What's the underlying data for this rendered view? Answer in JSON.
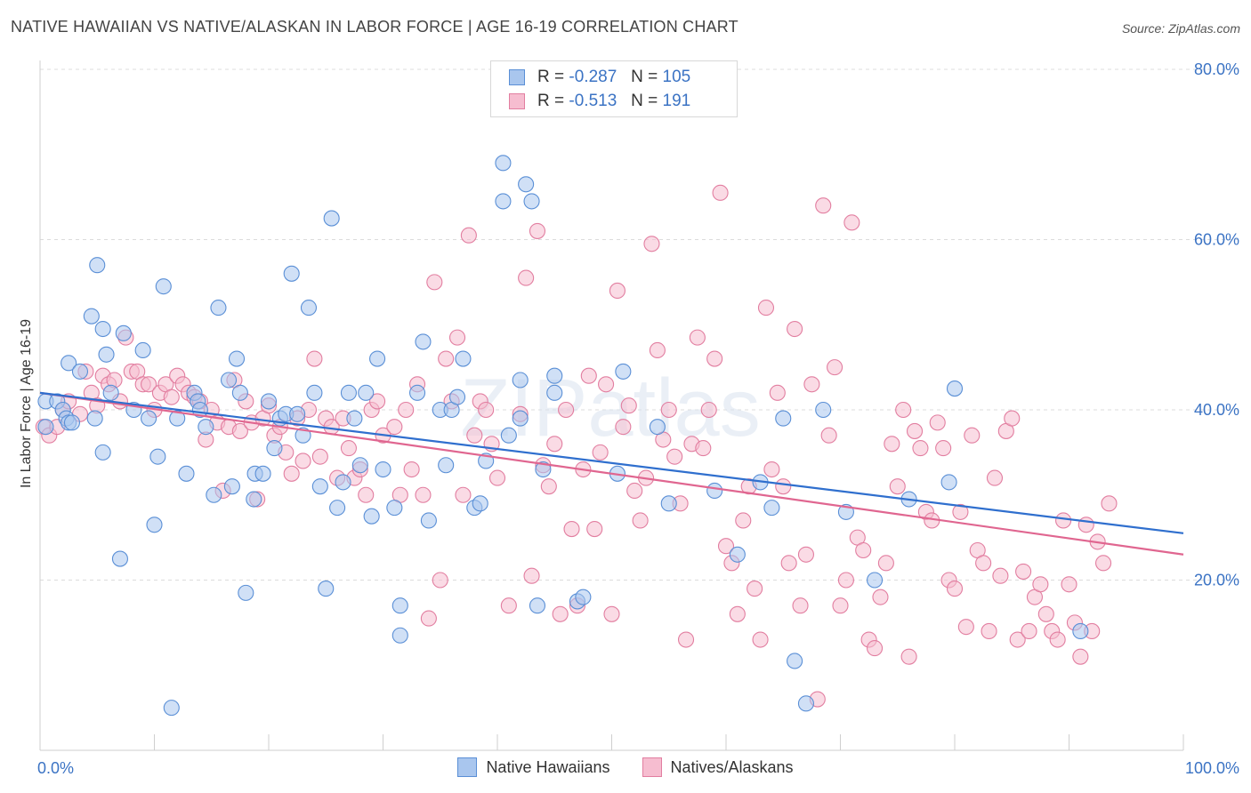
{
  "title": "NATIVE HAWAIIAN VS NATIVE/ALASKAN IN LABOR FORCE | AGE 16-19 CORRELATION CHART",
  "source": "Source: ZipAtlas.com",
  "watermark": "ZIPatlas",
  "legend": {
    "r_label": "R =",
    "n_label": "N =",
    "series": [
      {
        "r": "-0.287",
        "n": "105"
      },
      {
        "r": "-0.513",
        "n": "191"
      }
    ]
  },
  "bottom_legend": [
    "Native Hawaiians",
    "Natives/Alaskans"
  ],
  "chart_data": {
    "type": "scatter",
    "title": "NATIVE HAWAIIAN VS NATIVE/ALASKAN IN LABOR FORCE | AGE 16-19 CORRELATION CHART",
    "xlabel": "",
    "ylabel": "In Labor Force | Age 16-19",
    "xlim": [
      0,
      100
    ],
    "ylim": [
      0,
      80
    ],
    "x_tick_labels": [
      "0.0%",
      "100.0%"
    ],
    "y_tick_labels": [
      "20.0%",
      "40.0%",
      "60.0%",
      "80.0%"
    ],
    "y_ticks": [
      20,
      40,
      60,
      80
    ],
    "grid": "horizontal dashed",
    "legend_placement": "top-center",
    "colors": {
      "hawaiian_fill": "#a9c6ee",
      "hawaiian_stroke": "#5a8fd6",
      "hawaiian_line": "#2f6fce",
      "alaskan_fill": "#f6bdd0",
      "alaskan_stroke": "#e27ea0",
      "alaskan_line": "#e06690"
    },
    "series": [
      {
        "name": "Native Hawaiians",
        "trend": {
          "x": [
            0,
            100
          ],
          "y": [
            42.0,
            25.5
          ]
        },
        "points": [
          [
            0.5,
            41
          ],
          [
            0.5,
            38
          ],
          [
            1.5,
            41
          ],
          [
            2,
            40
          ],
          [
            2.3,
            39
          ],
          [
            2.5,
            38.5
          ],
          [
            2.8,
            38.5
          ],
          [
            2.5,
            45.5
          ],
          [
            3.5,
            44.5
          ],
          [
            4.5,
            51
          ],
          [
            4.8,
            39
          ],
          [
            5,
            57
          ],
          [
            5.5,
            35
          ],
          [
            5.5,
            49.5
          ],
          [
            5.8,
            46.5
          ],
          [
            6.2,
            42
          ],
          [
            7,
            22.5
          ],
          [
            7.3,
            49
          ],
          [
            8.2,
            40
          ],
          [
            9,
            47
          ],
          [
            9.5,
            39
          ],
          [
            10,
            26.5
          ],
          [
            10.3,
            34.5
          ],
          [
            10.8,
            54.5
          ],
          [
            11.5,
            5
          ],
          [
            12,
            39
          ],
          [
            12.8,
            32.5
          ],
          [
            13.5,
            42
          ],
          [
            13.8,
            41
          ],
          [
            14,
            40
          ],
          [
            14.5,
            38
          ],
          [
            15.2,
            30
          ],
          [
            15.6,
            52
          ],
          [
            16.5,
            43.5
          ],
          [
            16.8,
            31
          ],
          [
            17.2,
            46
          ],
          [
            17.5,
            42
          ],
          [
            18,
            18.5
          ],
          [
            18.7,
            29.5
          ],
          [
            18.8,
            32.5
          ],
          [
            19.5,
            32.5
          ],
          [
            20,
            41
          ],
          [
            20.5,
            35.5
          ],
          [
            21,
            39
          ],
          [
            21.5,
            39.5
          ],
          [
            22,
            56
          ],
          [
            22.5,
            39.5
          ],
          [
            23,
            37
          ],
          [
            23.5,
            52
          ],
          [
            24,
            42
          ],
          [
            24.5,
            31
          ],
          [
            25,
            19
          ],
          [
            25.5,
            62.5
          ],
          [
            26,
            28.5
          ],
          [
            26.5,
            31.5
          ],
          [
            27,
            42
          ],
          [
            27.5,
            39
          ],
          [
            28,
            33.5
          ],
          [
            28.5,
            42
          ],
          [
            29,
            27.5
          ],
          [
            29.5,
            46
          ],
          [
            30,
            33
          ],
          [
            31,
            28.5
          ],
          [
            31.5,
            17
          ],
          [
            31.5,
            13.5
          ],
          [
            33,
            42
          ],
          [
            33.5,
            48
          ],
          [
            34,
            27
          ],
          [
            35,
            40
          ],
          [
            35.5,
            33.5
          ],
          [
            36,
            40
          ],
          [
            36.5,
            41.5
          ],
          [
            37,
            46
          ],
          [
            38,
            28.5
          ],
          [
            39,
            34
          ],
          [
            38.5,
            29
          ],
          [
            40.5,
            69
          ],
          [
            40.5,
            64.5
          ],
          [
            41,
            37
          ],
          [
            42,
            39
          ],
          [
            42,
            43.5
          ],
          [
            42.5,
            66.5
          ],
          [
            43,
            64.5
          ],
          [
            43.5,
            17
          ],
          [
            44,
            33
          ],
          [
            45,
            42
          ],
          [
            45,
            44
          ],
          [
            47,
            17.5
          ],
          [
            47.5,
            18
          ],
          [
            50.5,
            32.5
          ],
          [
            51,
            44.5
          ],
          [
            54,
            38
          ],
          [
            55,
            29
          ],
          [
            59,
            30.5
          ],
          [
            61,
            23
          ],
          [
            63,
            31.5
          ],
          [
            64,
            28.5
          ],
          [
            65,
            39
          ],
          [
            66,
            10.5
          ],
          [
            67,
            5.5
          ],
          [
            68.5,
            40
          ],
          [
            70.5,
            28
          ],
          [
            73,
            20
          ],
          [
            76,
            29.5
          ],
          [
            79.5,
            31.5
          ],
          [
            80,
            42.5
          ],
          [
            91,
            14
          ]
        ]
      },
      {
        "name": "Natives/Alaskans",
        "trend": {
          "x": [
            0,
            100
          ],
          "y": [
            42.0,
            23.0
          ]
        },
        "points": [
          [
            0.3,
            38
          ],
          [
            0.8,
            37
          ],
          [
            1.5,
            38
          ],
          [
            2,
            40
          ],
          [
            2.5,
            41
          ],
          [
            3.5,
            39.5
          ],
          [
            4,
            44.5
          ],
          [
            4.5,
            42
          ],
          [
            5,
            40.5
          ],
          [
            5.5,
            44
          ],
          [
            6,
            43
          ],
          [
            6.5,
            43.5
          ],
          [
            7,
            41
          ],
          [
            7.5,
            48.5
          ],
          [
            8,
            44.5
          ],
          [
            8.5,
            44.5
          ],
          [
            9,
            43
          ],
          [
            9.5,
            43
          ],
          [
            10,
            40
          ],
          [
            10.5,
            42
          ],
          [
            11,
            43
          ],
          [
            11.5,
            41.5
          ],
          [
            12,
            44
          ],
          [
            12.5,
            43
          ],
          [
            13,
            42
          ],
          [
            13.5,
            41.5
          ],
          [
            14,
            41
          ],
          [
            14.5,
            36.5
          ],
          [
            15,
            40
          ],
          [
            15.5,
            38.5
          ],
          [
            16,
            30.5
          ],
          [
            16.5,
            38
          ],
          [
            17,
            43.5
          ],
          [
            17.5,
            37.5
          ],
          [
            18,
            41
          ],
          [
            18.5,
            38.5
          ],
          [
            19,
            29.5
          ],
          [
            19.5,
            39
          ],
          [
            20,
            40.5
          ],
          [
            20.5,
            37
          ],
          [
            21,
            38
          ],
          [
            21.5,
            35
          ],
          [
            22,
            32.5
          ],
          [
            22.5,
            39
          ],
          [
            23,
            34
          ],
          [
            23.5,
            40
          ],
          [
            24,
            46
          ],
          [
            24.5,
            34.5
          ],
          [
            25,
            39
          ],
          [
            25.5,
            38
          ],
          [
            26,
            32
          ],
          [
            26.5,
            39
          ],
          [
            27,
            35.5
          ],
          [
            27.5,
            32
          ],
          [
            28,
            33
          ],
          [
            28.5,
            30
          ],
          [
            29,
            40
          ],
          [
            29.5,
            41
          ],
          [
            30,
            37
          ],
          [
            31,
            38
          ],
          [
            31.5,
            30
          ],
          [
            32,
            40
          ],
          [
            32.5,
            33
          ],
          [
            33,
            43
          ],
          [
            33.5,
            30
          ],
          [
            34,
            15.5
          ],
          [
            34.5,
            55
          ],
          [
            35,
            20
          ],
          [
            35.5,
            46
          ],
          [
            36,
            41
          ],
          [
            36.5,
            48.5
          ],
          [
            37,
            30
          ],
          [
            37.5,
            60.5
          ],
          [
            38,
            37
          ],
          [
            38.5,
            41
          ],
          [
            39,
            40
          ],
          [
            39.5,
            36
          ],
          [
            40,
            32
          ],
          [
            41,
            17
          ],
          [
            42,
            39.5
          ],
          [
            42.5,
            55.5
          ],
          [
            43,
            20.5
          ],
          [
            43.5,
            61
          ],
          [
            44,
            33.5
          ],
          [
            44.5,
            31
          ],
          [
            45,
            36
          ],
          [
            45.5,
            16
          ],
          [
            46,
            40
          ],
          [
            46.5,
            26
          ],
          [
            47,
            17
          ],
          [
            47.5,
            33
          ],
          [
            48,
            44
          ],
          [
            48.5,
            26
          ],
          [
            49,
            35
          ],
          [
            49.5,
            43
          ],
          [
            50,
            16
          ],
          [
            50.5,
            54
          ],
          [
            51,
            38
          ],
          [
            51.5,
            40.5
          ],
          [
            52,
            30.5
          ],
          [
            52.5,
            27
          ],
          [
            53,
            32
          ],
          [
            53.5,
            59.5
          ],
          [
            54,
            47
          ],
          [
            54.5,
            36.5
          ],
          [
            55,
            40
          ],
          [
            55.5,
            34.5
          ],
          [
            56,
            29
          ],
          [
            56.5,
            13
          ],
          [
            57,
            36
          ],
          [
            57.5,
            48.5
          ],
          [
            58,
            35.5
          ],
          [
            58.5,
            40
          ],
          [
            59,
            46
          ],
          [
            59.5,
            65.5
          ],
          [
            60,
            24
          ],
          [
            60.5,
            22
          ],
          [
            61,
            16
          ],
          [
            61.5,
            27
          ],
          [
            62,
            31
          ],
          [
            62.5,
            19
          ],
          [
            63,
            13
          ],
          [
            63.5,
            52
          ],
          [
            64,
            33
          ],
          [
            64.5,
            42
          ],
          [
            65,
            31
          ],
          [
            65.5,
            22
          ],
          [
            66,
            49.5
          ],
          [
            66.5,
            17
          ],
          [
            67,
            23
          ],
          [
            67.5,
            43
          ],
          [
            68,
            6
          ],
          [
            68.5,
            64
          ],
          [
            69,
            37
          ],
          [
            69.5,
            45
          ],
          [
            70,
            17
          ],
          [
            70.5,
            20
          ],
          [
            71,
            62
          ],
          [
            71.5,
            25
          ],
          [
            72,
            23.5
          ],
          [
            72.5,
            13
          ],
          [
            73,
            12
          ],
          [
            73.5,
            18
          ],
          [
            74,
            22
          ],
          [
            74.5,
            36
          ],
          [
            75,
            31
          ],
          [
            75.5,
            40
          ],
          [
            76,
            11
          ],
          [
            76.5,
            37.5
          ],
          [
            77,
            35.5
          ],
          [
            77.5,
            28
          ],
          [
            78,
            27
          ],
          [
            78.5,
            38.5
          ],
          [
            79,
            35.5
          ],
          [
            79.5,
            20
          ],
          [
            80,
            19
          ],
          [
            80.5,
            28
          ],
          [
            81,
            14.5
          ],
          [
            81.5,
            37
          ],
          [
            82,
            23.5
          ],
          [
            82.5,
            22
          ],
          [
            83,
            14
          ],
          [
            83.5,
            32
          ],
          [
            84,
            20.5
          ],
          [
            84.5,
            37.5
          ],
          [
            85,
            39
          ],
          [
            85.5,
            13
          ],
          [
            86,
            21
          ],
          [
            86.5,
            14
          ],
          [
            87,
            18
          ],
          [
            87.5,
            19.5
          ],
          [
            88,
            16
          ],
          [
            88.5,
            14
          ],
          [
            89,
            13
          ],
          [
            89.5,
            27
          ],
          [
            90,
            19.5
          ],
          [
            90.5,
            15
          ],
          [
            91,
            11
          ],
          [
            91.5,
            26.5
          ],
          [
            92,
            14
          ],
          [
            92.5,
            24.5
          ],
          [
            93,
            22
          ],
          [
            93.5,
            29
          ]
        ]
      }
    ]
  }
}
